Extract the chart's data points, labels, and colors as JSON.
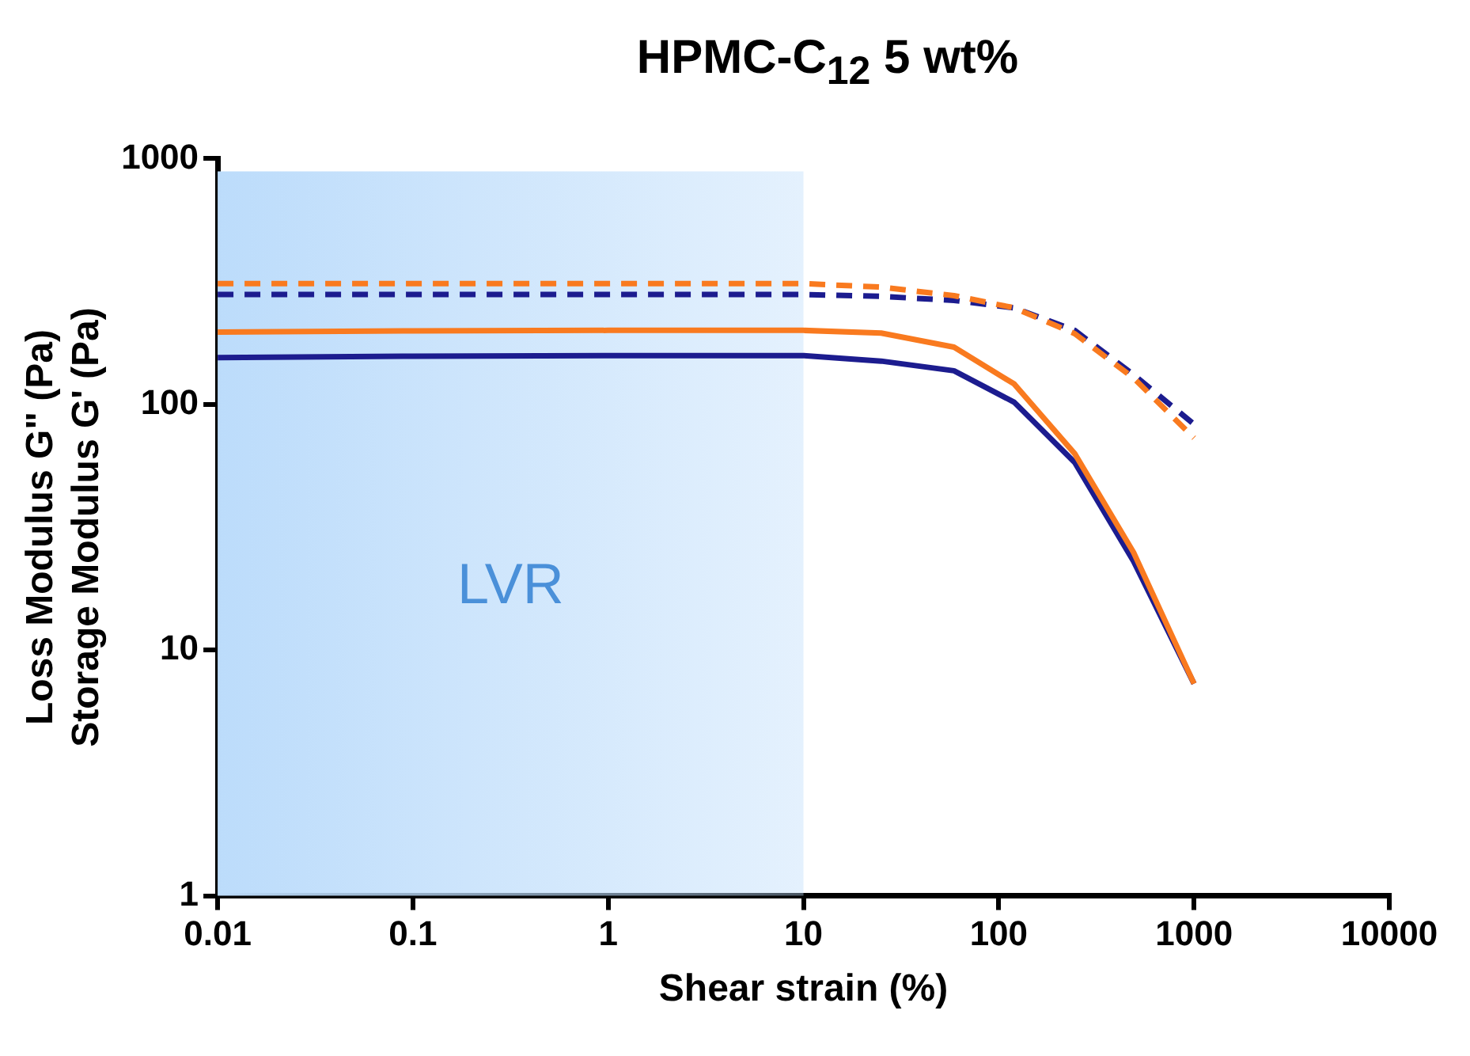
{
  "chart_data": {
    "type": "line",
    "title": "HPMC-C$_{12}$ 5 wt%",
    "xlabel": "Shear strain (%)",
    "ylabel": "Loss Modulus G\" (Pa)\nStorage Modulus G' (Pa)",
    "log": "xy",
    "xlim": [
      0.01,
      10000
    ],
    "xticks": [
      0.01,
      0.1,
      1,
      10,
      100,
      1000,
      10000
    ],
    "ylim": [
      1,
      1000
    ],
    "yticks": [
      1,
      10,
      100,
      1000
    ],
    "grid": false,
    "legend": false,
    "marker": "none",
    "bands": [
      {
        "axis": "x",
        "from": 0.01,
        "to": 10,
        "label": "LVR",
        "color": "#bcdcfb"
      }
    ],
    "series": [
      {
        "color": "#f97a1f",
        "line_style": "dashed",
        "x": [
          0.01,
          0.1,
          1,
          10,
          25,
          59,
          120,
          245,
          490,
          1000
        ],
        "values": [
          310,
          310,
          310,
          310,
          300,
          277,
          247,
          194,
          128,
          73
        ]
      },
      {
        "color": "#1c1c8f",
        "line_style": "dashed",
        "x": [
          0.01,
          0.1,
          1,
          10,
          25,
          59,
          120,
          245,
          490,
          1000
        ],
        "values": [
          280,
          280,
          280,
          280,
          275,
          265,
          247,
          200,
          132,
          83
        ]
      },
      {
        "color": "#f97a1f",
        "line_style": "solid",
        "x": [
          0.01,
          0.1,
          1,
          10,
          25,
          59,
          120,
          245,
          490,
          1000
        ],
        "values": [
          197,
          199,
          200,
          200,
          195,
          171,
          121,
          63,
          25,
          7.3
        ]
      },
      {
        "color": "#1c1c8f",
        "line_style": "solid",
        "x": [
          0.01,
          0.1,
          1,
          10,
          25,
          59,
          120,
          245,
          490,
          1000
        ],
        "values": [
          155,
          157,
          158,
          158,
          150,
          137,
          102,
          58,
          23,
          7.3
        ]
      }
    ]
  }
}
